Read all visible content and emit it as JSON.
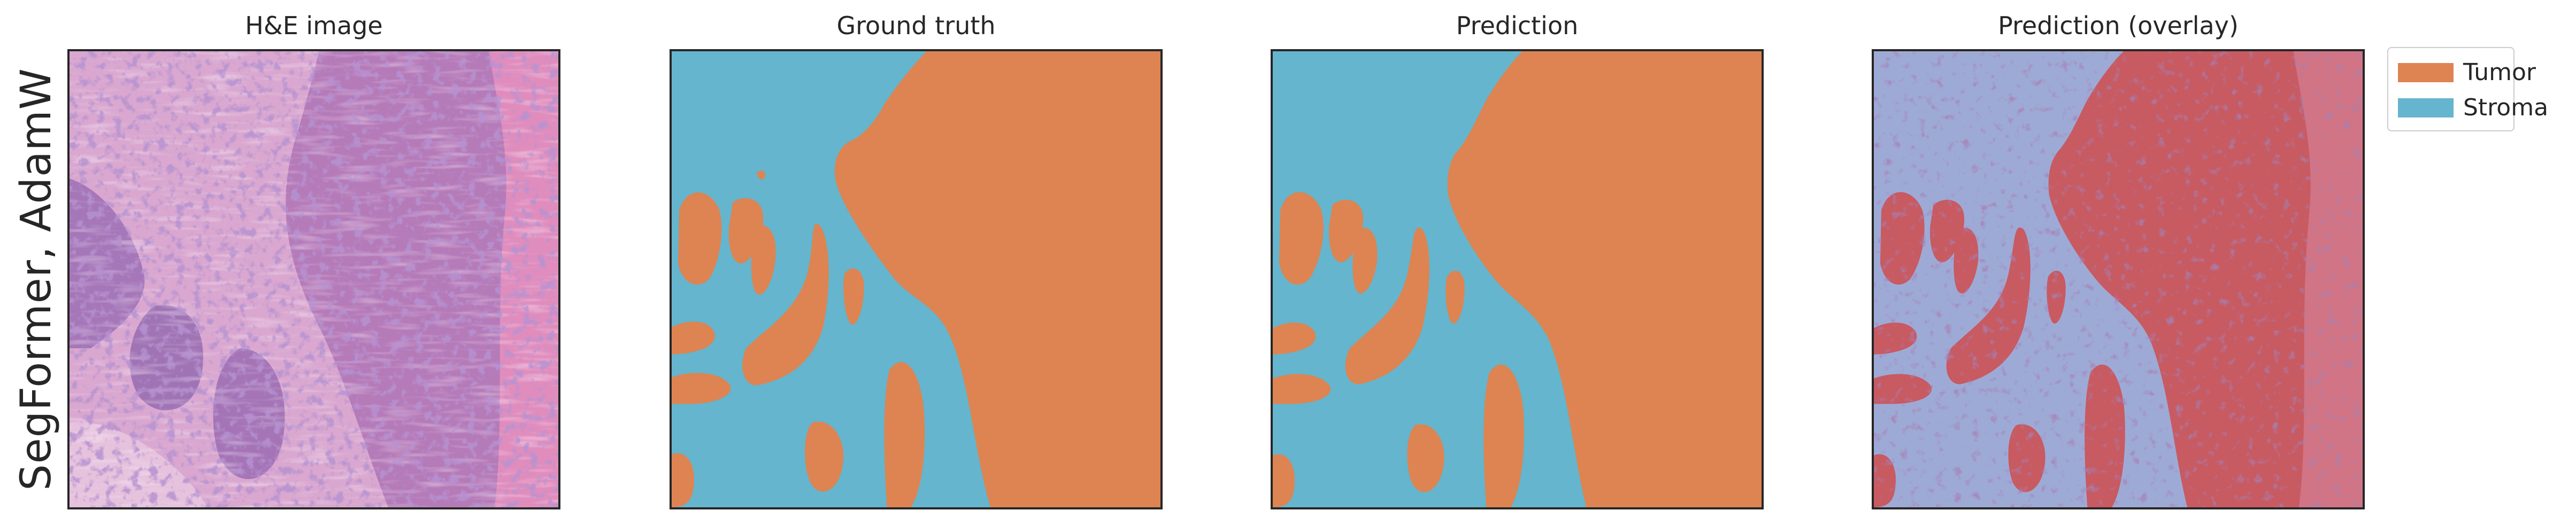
{
  "row_label": "SegFormer, AdamW",
  "panels": [
    {
      "title": "H&E image"
    },
    {
      "title": "Ground truth"
    },
    {
      "title": "Prediction"
    },
    {
      "title": "Prediction (overlay)"
    }
  ],
  "legend": {
    "placement": "outside-right-top",
    "items": [
      {
        "label": "Tumor",
        "color": "#dd8452"
      },
      {
        "label": "Stroma",
        "color": "#64b5cd"
      }
    ]
  },
  "colors": {
    "tumor": "#dd8452",
    "stroma": "#64b5cd",
    "overlay_tumor": "#c85a62",
    "overlay_stroma": "#9eaad6",
    "he_pink": "#d68fc0",
    "he_purple": "#7a4fa3"
  }
}
